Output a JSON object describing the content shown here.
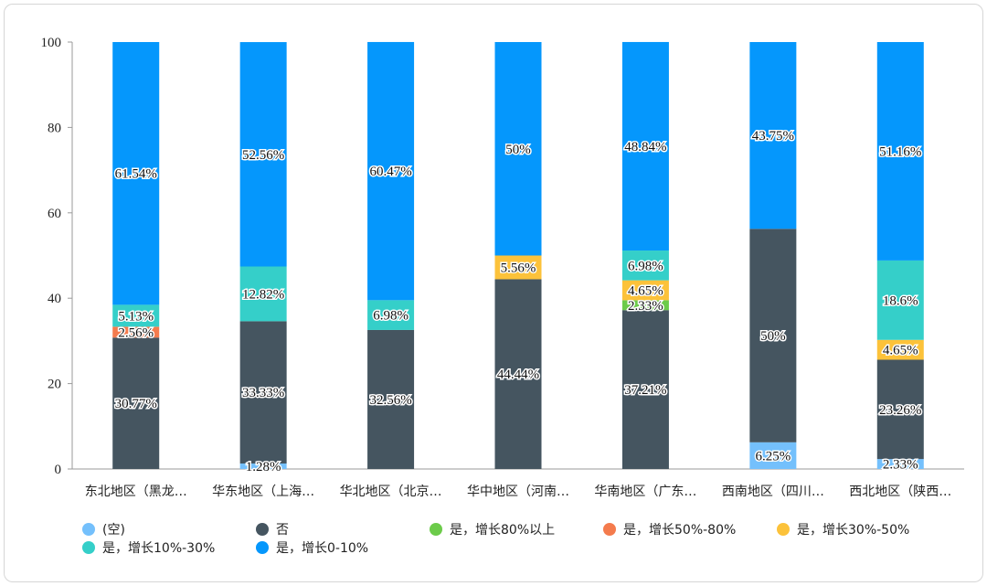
{
  "chart_data": {
    "type": "bar",
    "stacked": true,
    "title": "",
    "xlabel": "",
    "ylabel": "",
    "ylim": [
      0,
      100
    ],
    "yticks": [
      0,
      20,
      40,
      60,
      80,
      100
    ],
    "grid": false,
    "legend_position": "bottom",
    "categories": [
      "东北地区（黑龙…",
      "华东地区（上海…",
      "华北地区（北京…",
      "华中地区（河南…",
      "华南地区（广东…",
      "西南地区（四川…",
      "西北地区（陕西…"
    ],
    "series": [
      {
        "name": "(空)",
        "color": "#74c0fc",
        "values": [
          0,
          1.28,
          0,
          0,
          0,
          6.25,
          2.33
        ],
        "labels": [
          "",
          "1.28%",
          "",
          "",
          "",
          "6.25%",
          "2.33%"
        ]
      },
      {
        "name": "否",
        "color": "#455560",
        "values": [
          30.77,
          33.33,
          32.56,
          44.44,
          37.21,
          50,
          23.26
        ],
        "labels": [
          "30.77%",
          "33.33%",
          "32.56%",
          "44.44%",
          "37.21%",
          "50%",
          "23.26%"
        ]
      },
      {
        "name": "是，增长80%以上",
        "color": "#6ccb4a",
        "values": [
          0,
          0,
          0,
          0,
          2.33,
          0,
          0
        ],
        "labels": [
          "",
          "",
          "",
          "",
          "2.33%",
          "",
          ""
        ]
      },
      {
        "name": "是，增长50%-80%",
        "color": "#f47b4d",
        "values": [
          2.56,
          0,
          0,
          0,
          0,
          0,
          0
        ],
        "labels": [
          "2.56%",
          "",
          "",
          "",
          "",
          "",
          ""
        ]
      },
      {
        "name": "是，增长30%-50%",
        "color": "#fcc23a",
        "values": [
          0,
          0,
          0,
          5.56,
          4.65,
          0,
          4.65
        ],
        "labels": [
          "",
          "",
          "",
          "5.56%",
          "4.65%",
          "",
          "4.65%"
        ]
      },
      {
        "name": "是，增长10%-30%",
        "color": "#35cfc9",
        "values": [
          5.13,
          12.82,
          6.98,
          0,
          6.98,
          0,
          18.6
        ],
        "labels": [
          "5.13%",
          "12.82%",
          "6.98%",
          "",
          "6.98%",
          "",
          "18.6%"
        ]
      },
      {
        "name": "是，增长0-10%",
        "color": "#0597fc",
        "values": [
          61.54,
          52.56,
          60.47,
          50,
          48.84,
          43.75,
          51.16
        ],
        "labels": [
          "61.54%",
          "52.56%",
          "60.47%",
          "50%",
          "48.84%",
          "43.75%",
          "51.16%"
        ]
      }
    ]
  }
}
